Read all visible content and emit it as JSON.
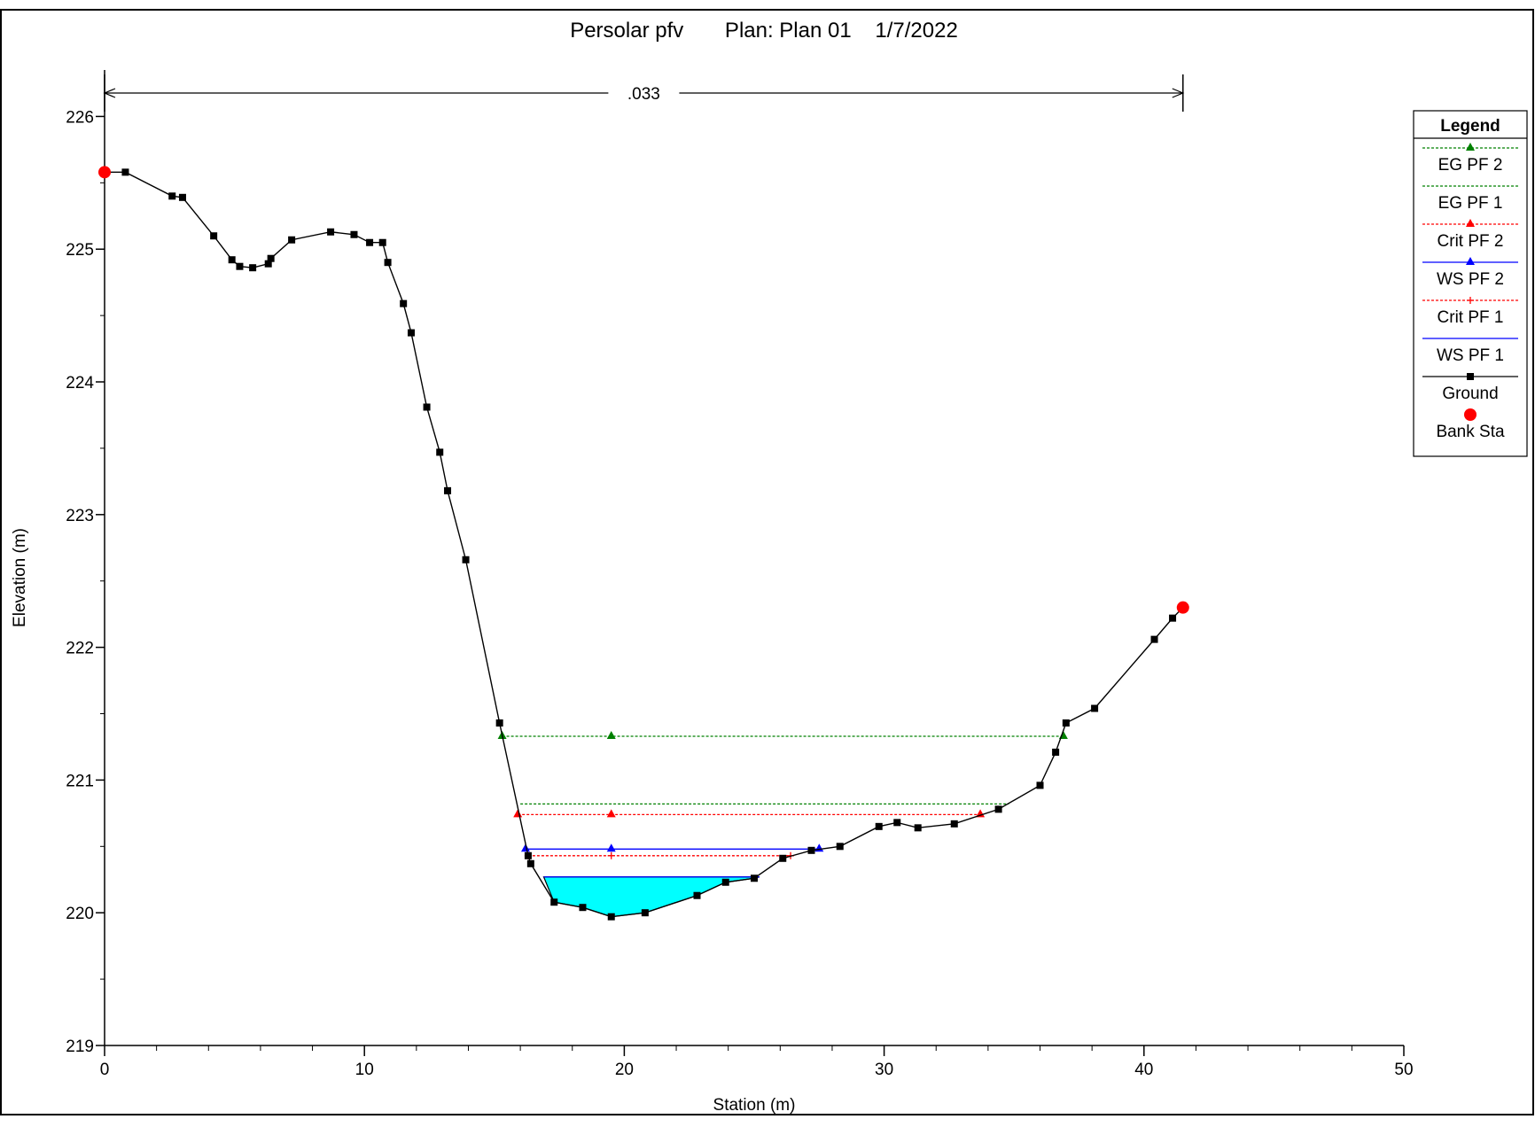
{
  "chart_data": {
    "type": "line",
    "title": "Persolar pfv       Plan: Plan 01    1/7/2022",
    "xlabel": "Station (m)",
    "ylabel": "Elevation (m)",
    "xlim": [
      0,
      50
    ],
    "ylim": [
      219,
      226.35
    ],
    "x_ticks": [
      "0",
      "10",
      "20",
      "30",
      "40",
      "50"
    ],
    "y_ticks": [
      "219",
      "220",
      "221",
      "222",
      "223",
      "224",
      "225",
      "226"
    ],
    "grid": false,
    "legend_position": "right",
    "manning": {
      "label": ".033",
      "x_start": 0,
      "x_end": 41.5
    },
    "legend": {
      "title": "Legend",
      "entries": [
        {
          "label": "EG PF 2",
          "color": "#008000",
          "line": "dashed",
          "marker": "triangle"
        },
        {
          "label": "EG PF 1",
          "color": "#008000",
          "line": "dashed",
          "marker": "none"
        },
        {
          "label": "Crit PF 2",
          "color": "#ff0000",
          "line": "dashed",
          "marker": "triangle"
        },
        {
          "label": "WS PF 2",
          "color": "#0000ff",
          "line": "solid",
          "marker": "triangle"
        },
        {
          "label": "Crit PF 1",
          "color": "#ff0000",
          "line": "dashed",
          "marker": "plus"
        },
        {
          "label": "WS PF 1",
          "color": "#0000ff",
          "line": "solid",
          "marker": "none"
        },
        {
          "label": "Ground",
          "color": "#000000",
          "line": "solid",
          "marker": "square"
        },
        {
          "label": "Bank Sta",
          "color": "#ff0000",
          "line": "none",
          "marker": "circle"
        }
      ]
    },
    "ground": {
      "x": [
        0,
        0.8,
        2.6,
        3.0,
        4.2,
        4.9,
        5.2,
        5.7,
        6.3,
        6.4,
        7.2,
        8.7,
        9.6,
        10.2,
        10.7,
        10.9,
        11.5,
        11.8,
        12.4,
        12.9,
        13.2,
        13.9,
        15.2,
        16.3,
        16.4,
        17.3,
        18.4,
        19.5,
        20.8,
        22.8,
        23.9,
        25.0,
        26.1,
        27.2,
        28.3,
        29.8,
        30.5,
        31.3,
        32.7,
        34.4,
        36.0,
        36.6,
        37.0,
        38.1,
        40.4,
        41.1,
        41.5
      ],
      "y": [
        225.58,
        225.58,
        225.4,
        225.39,
        225.1,
        224.92,
        224.87,
        224.86,
        224.89,
        224.93,
        225.07,
        225.13,
        225.11,
        225.05,
        225.05,
        224.9,
        224.59,
        224.37,
        223.81,
        223.47,
        223.18,
        222.66,
        221.43,
        220.43,
        220.37,
        220.08,
        220.04,
        219.97,
        220.0,
        220.13,
        220.23,
        220.26,
        220.41,
        220.47,
        220.5,
        220.65,
        220.68,
        220.64,
        220.67,
        220.78,
        220.96,
        221.21,
        221.43,
        221.54,
        222.06,
        222.22,
        222.3
      ]
    },
    "bank_stations": [
      {
        "x": 0,
        "y": 225.58
      },
      {
        "x": 41.5,
        "y": 222.3
      }
    ],
    "water_levels": [
      {
        "name": "EG PF 2",
        "elevation": 221.33,
        "x_start": 15.3,
        "x_end": 36.9,
        "marker_x": [
          15.3,
          19.5,
          36.9
        ]
      },
      {
        "name": "EG PF 1",
        "elevation": 220.82,
        "x_start": 16.0,
        "x_end": 34.8,
        "marker_x": []
      },
      {
        "name": "Crit PF 2",
        "elevation": 220.74,
        "x_start": 15.9,
        "x_end": 33.7,
        "marker_x": [
          15.9,
          19.5,
          33.7
        ]
      },
      {
        "name": "WS PF 2",
        "elevation": 220.48,
        "x_start": 16.2,
        "x_end": 27.5,
        "marker_x": [
          16.2,
          19.5,
          27.5
        ]
      },
      {
        "name": "Crit PF 1",
        "elevation": 220.43,
        "x_start": 16.3,
        "x_end": 26.4,
        "marker_x": [
          16.3,
          19.5,
          26.4
        ]
      },
      {
        "name": "WS PF 1",
        "elevation": 220.27,
        "x_start": 16.9,
        "x_end": 25.2,
        "marker_x": []
      }
    ]
  }
}
